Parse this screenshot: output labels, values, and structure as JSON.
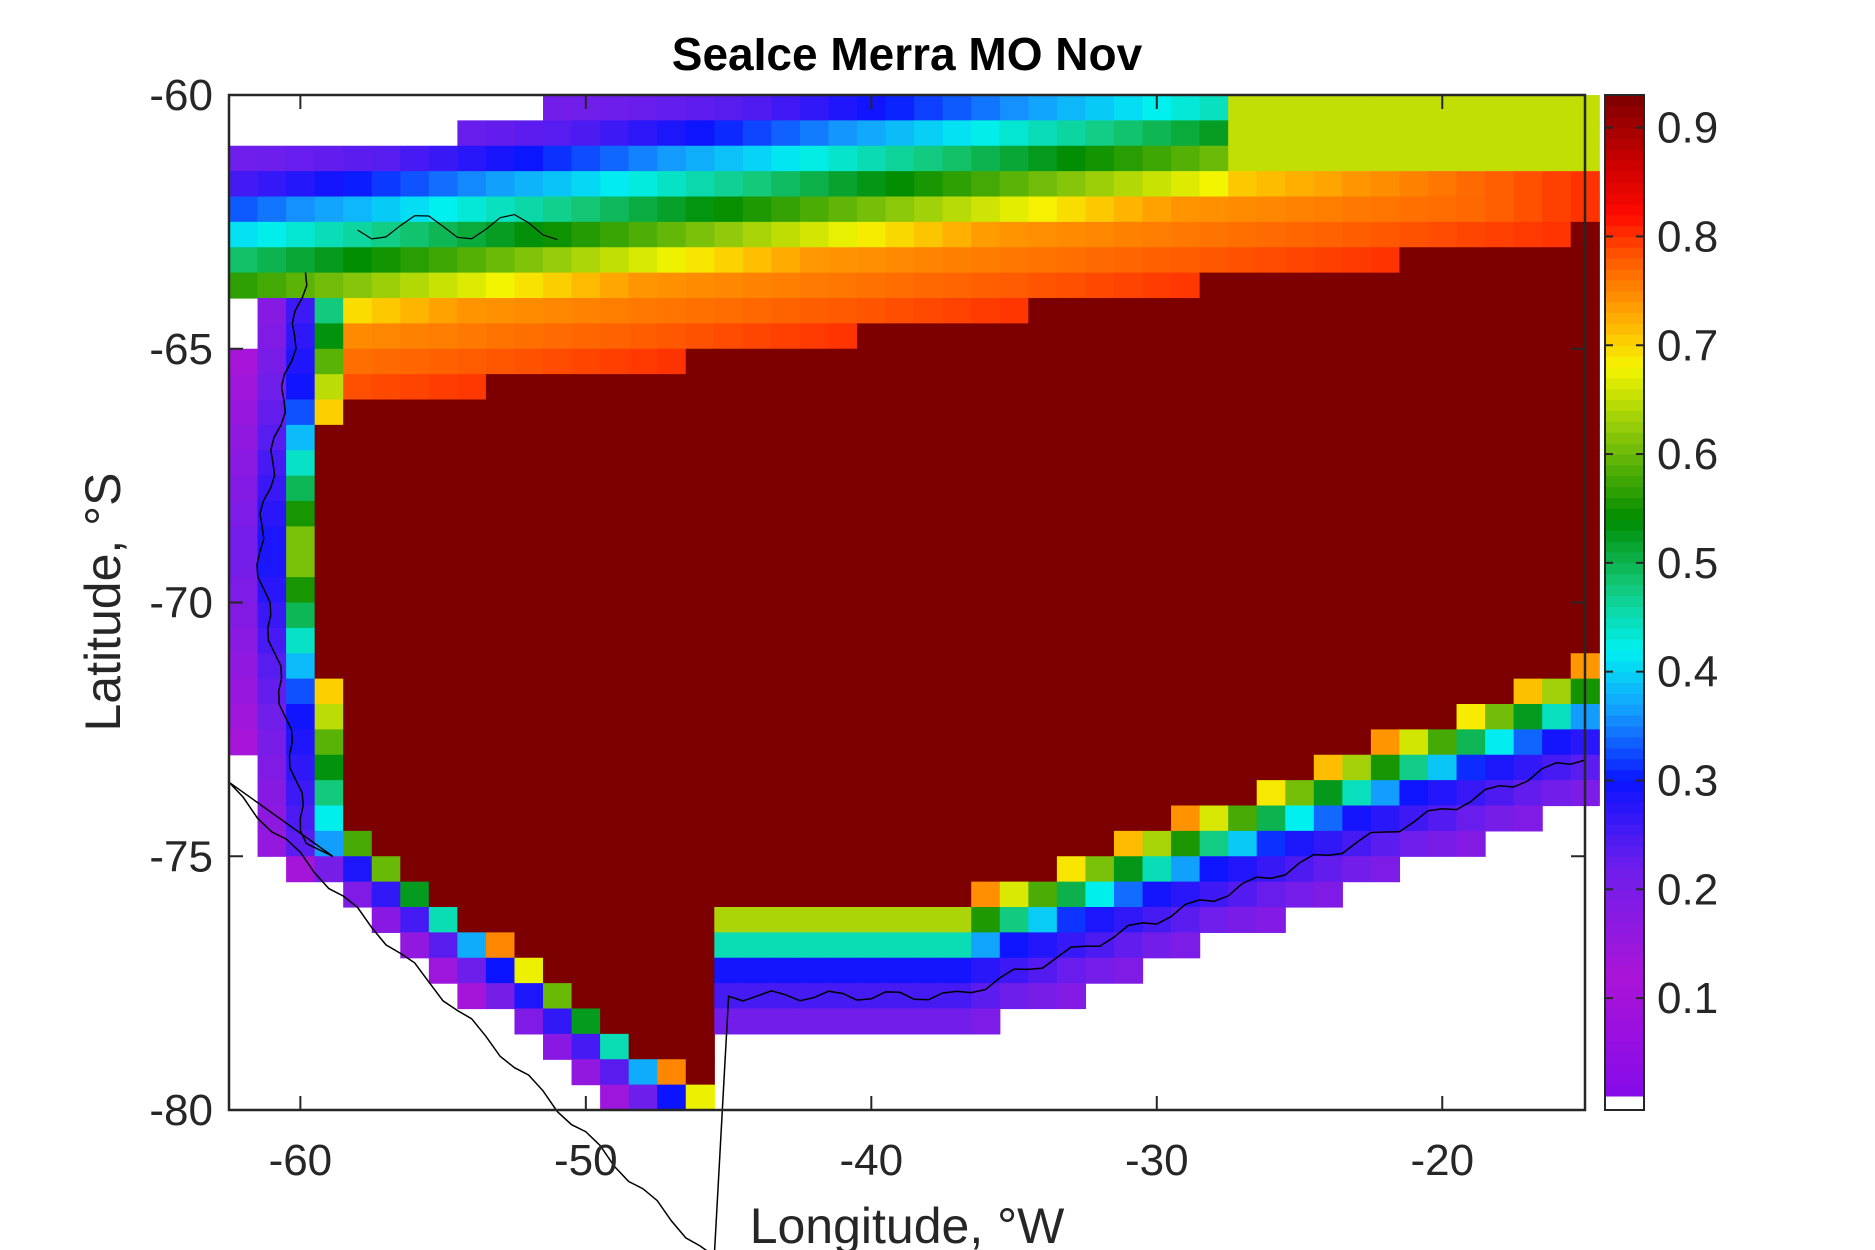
{
  "chart_data": {
    "type": "heatmap",
    "title": "SeaIce Merra MO Nov",
    "xlabel": "Longitude, °W",
    "ylabel": "Latitude, °S",
    "xlim": [
      -62.5,
      -15
    ],
    "ylim": [
      -80,
      -60
    ],
    "xticks": [
      -60,
      -50,
      -40,
      -30,
      -20
    ],
    "yticks": [
      -60,
      -65,
      -70,
      -75,
      -80
    ],
    "colorbar": {
      "range": [
        0.01,
        0.93
      ],
      "ticks": [
        0.1,
        0.2,
        0.3,
        0.4,
        0.5,
        0.6,
        0.7,
        0.8,
        0.9
      ],
      "colormap": "rainbow (purple to dark red)"
    },
    "grid_resolution_deg": [
      1,
      0.5
    ],
    "summary": "Sea-ice concentration field over the Weddell Sea region; interior values ~0.85-0.93, decreasing to ~0.1-0.3 along the Antarctic coast and the northern ice edge near -60 to -63 deg S."
  }
}
